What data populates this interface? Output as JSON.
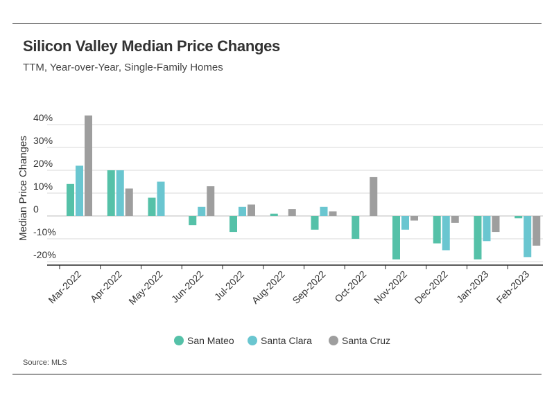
{
  "header": {
    "title": "Silicon Valley Median Price Changes",
    "subtitle": "TTM, Year-over-Year, Single-Family Homes"
  },
  "footer": {
    "source": "Source:  MLS"
  },
  "chart_data": {
    "type": "bar",
    "title": "Silicon Valley Median Price Changes",
    "subtitle": "TTM, Year-over-Year, Single-Family Homes",
    "xlabel": "",
    "ylabel": "Median Price Changes",
    "ylim": [
      -0.2,
      0.4
    ],
    "yticks": [
      0.4,
      0.3,
      0.2,
      0.1,
      0,
      -0.1,
      -0.2
    ],
    "ytick_labels": [
      "40%",
      "30%",
      "20%",
      "10%",
      "0",
      "-10%",
      "-20%"
    ],
    "grid": true,
    "legend_position": "bottom",
    "categories": [
      "Mar-2022",
      "Apr-2022",
      "May-2022",
      "Jun-2022",
      "Jul-2022",
      "Aug-2022",
      "Sep-2022",
      "Oct-2022",
      "Nov-2022",
      "Dec-2022",
      "Jan-2023",
      "Feb-2023"
    ],
    "series": [
      {
        "name": "San Mateo",
        "color": "#55c1a8",
        "values": [
          0.14,
          0.2,
          0.08,
          -0.04,
          -0.07,
          0.01,
          -0.06,
          -0.1,
          -0.19,
          -0.12,
          -0.19,
          -0.01
        ]
      },
      {
        "name": "Santa Clara",
        "color": "#6ac6d0",
        "values": [
          0.22,
          0.2,
          0.15,
          0.04,
          0.04,
          0.0,
          0.04,
          0.0,
          -0.06,
          -0.15,
          -0.11,
          -0.18
        ]
      },
      {
        "name": "Santa Cruz",
        "color": "#9e9e9e",
        "values": [
          0.44,
          0.12,
          0.0,
          0.13,
          0.05,
          0.03,
          0.02,
          0.17,
          -0.02,
          -0.03,
          -0.07,
          -0.13
        ]
      }
    ]
  }
}
